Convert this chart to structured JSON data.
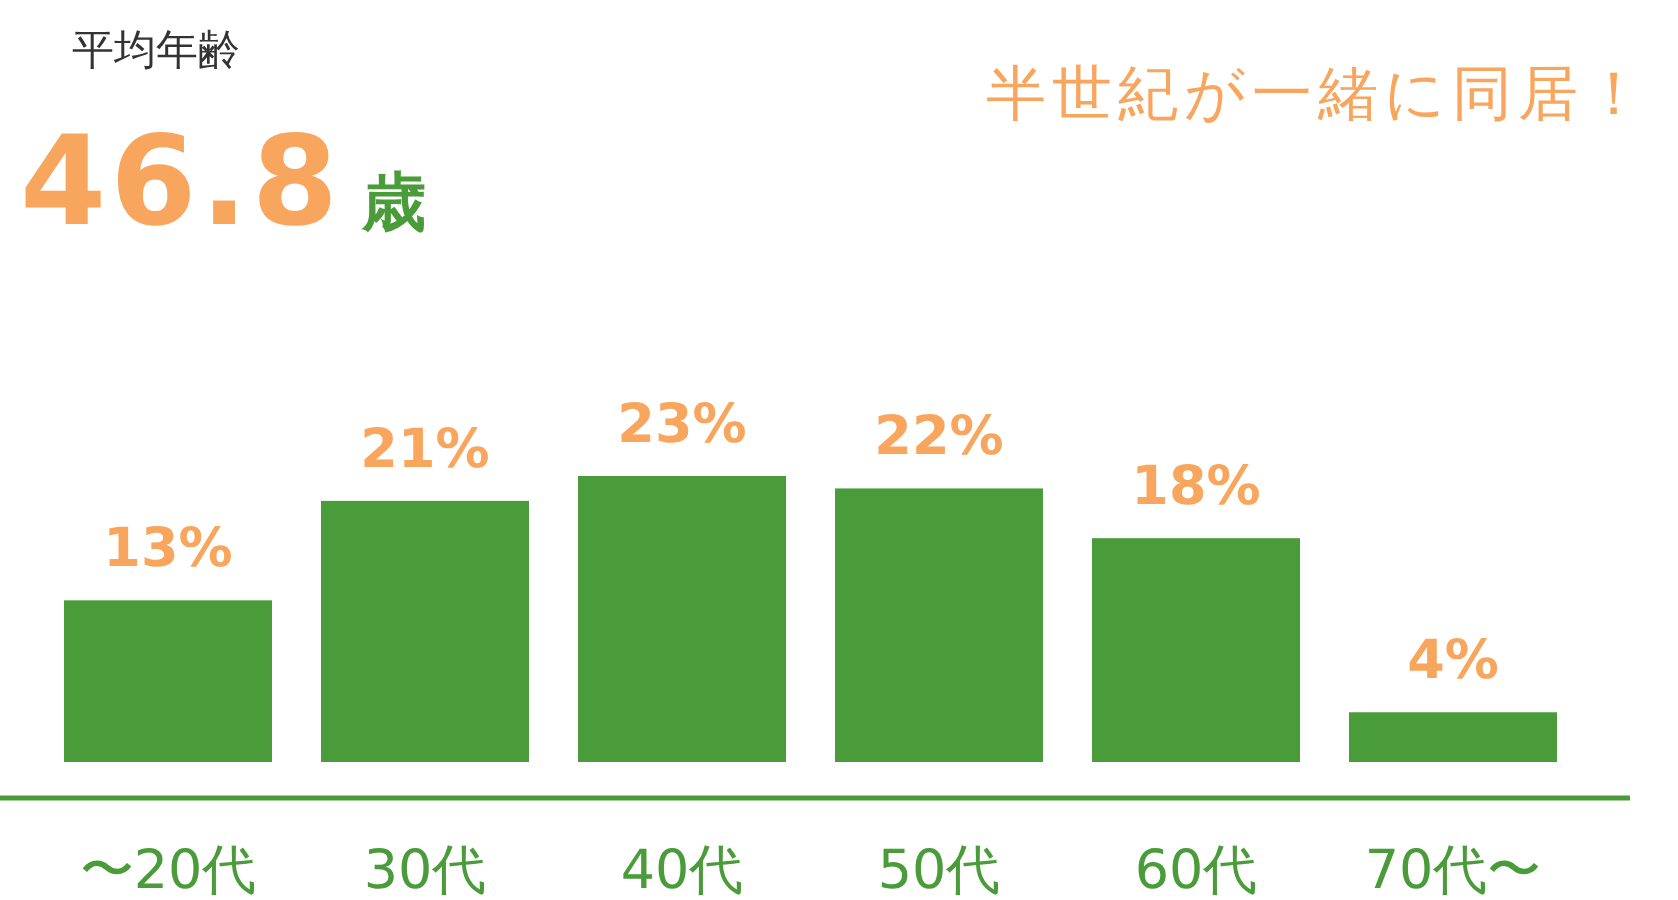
{
  "chart_data": {
    "type": "bar",
    "categories": [
      "〜20代",
      "30代",
      "40代",
      "50代",
      "60代",
      "70代〜"
    ],
    "values": [
      13,
      21,
      23,
      22,
      18,
      4
    ],
    "value_labels": [
      "13%",
      "21%",
      "23%",
      "22%",
      "18%",
      "4%"
    ],
    "color": "#4a9b3a",
    "annotations": [
      "平均年齢",
      "46.8",
      "歳",
      "半世紀が一緒に同居！"
    ]
  }
}
